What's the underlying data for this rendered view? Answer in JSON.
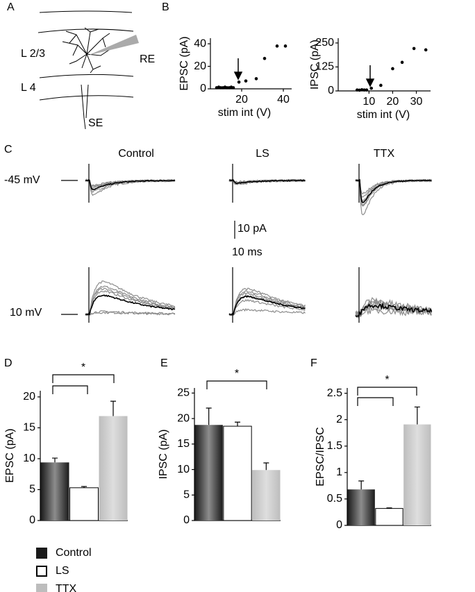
{
  "panel_labels": [
    "A",
    "B",
    "C",
    "D",
    "E",
    "F"
  ],
  "diagram": {
    "labels": [
      "L 2/3",
      "RE",
      "L 4",
      "SE"
    ]
  },
  "traces": {
    "columns": [
      "Control",
      "LS",
      "TTX"
    ],
    "holding": [
      "-45 mV",
      "10 mV"
    ],
    "scale_y": "10 pA",
    "scale_x": "10 ms"
  },
  "legend": [
    {
      "name": "Control",
      "color": "#1a1a1a"
    },
    {
      "name": "LS",
      "color": "#ffffff"
    },
    {
      "name": "TTX",
      "color": "#bdbdbd"
    }
  ],
  "chart_data": [
    {
      "type": "scatter",
      "xlabel": "stim int (V)",
      "ylabel": "EPSC (pA)",
      "x": [
        8,
        9,
        10,
        11,
        12,
        13,
        14,
        15,
        16,
        18.7,
        22,
        27,
        31,
        37,
        41
      ],
      "values": [
        1,
        1.5,
        1,
        1,
        1.5,
        1,
        1,
        1.5,
        1,
        6,
        7,
        9,
        27,
        38,
        38
      ],
      "xlim": [
        5,
        44
      ],
      "ylim": [
        0,
        45
      ],
      "xticks": [
        20,
        40
      ],
      "yticks": [
        0,
        20,
        40
      ]
    },
    {
      "type": "scatter",
      "xlabel": "stim int (V)",
      "ylabel": "IPSC (pA)",
      "x": [
        5,
        6,
        7,
        8,
        9,
        11,
        15,
        20,
        24,
        29,
        34
      ],
      "values": [
        5,
        4,
        6,
        5,
        5,
        14,
        29,
        116,
        149,
        221,
        214
      ],
      "xlim": [
        -3,
        36
      ],
      "ylim": [
        0,
        275
      ],
      "xticks": [
        10,
        20,
        30
      ],
      "yticks": [
        0,
        125,
        250
      ]
    },
    {
      "type": "bar",
      "ylabel": "EPSC (pA)",
      "categories": [
        null,
        null,
        null
      ],
      "values": [
        9.4,
        5.3,
        16.9
      ],
      "errors": [
        0.7,
        0.2,
        2.4
      ],
      "ylim": [
        0,
        21
      ],
      "yticks": [
        0,
        5,
        10,
        15,
        20
      ],
      "annotation": "*"
    },
    {
      "type": "bar",
      "ylabel": "IPSC (pA)",
      "categories": [
        null,
        null,
        null
      ],
      "values": [
        18.75,
        18.5,
        9.9
      ],
      "errors": [
        3.3,
        0.8,
        1.4
      ],
      "ylim": [
        0,
        26
      ],
      "yticks": [
        0,
        5,
        10,
        15,
        20,
        25
      ],
      "annotation": "*"
    },
    {
      "type": "bar",
      "ylabel": "EPSC/IPSC",
      "categories": [
        null,
        null,
        null
      ],
      "values": [
        0.68,
        0.32,
        1.91
      ],
      "errors": [
        0.16,
        0.01,
        0.33
      ],
      "ylim": [
        0,
        2.6
      ],
      "yticks": [
        0,
        0.5,
        1,
        1.5,
        2,
        2.5
      ],
      "annotation": "*"
    }
  ]
}
